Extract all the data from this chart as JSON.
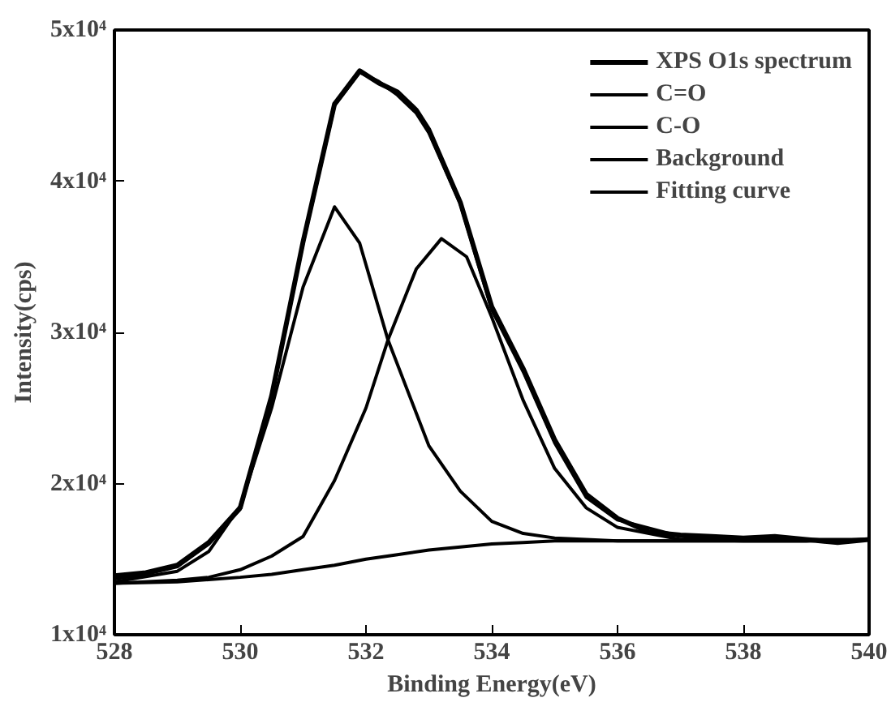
{
  "chart_data": {
    "type": "line",
    "xlabel": "Binding Energy(eV)",
    "ylabel": "Intensity(cps)",
    "xlim": [
      528,
      540
    ],
    "xticks": [
      528,
      530,
      532,
      534,
      536,
      538,
      540
    ],
    "ylim": [
      10000,
      50000
    ],
    "yticks": [
      {
        "value": 10000,
        "label": "1x10⁴"
      },
      {
        "value": 20000,
        "label": "2x10⁴"
      },
      {
        "value": 30000,
        "label": "3x10⁴"
      },
      {
        "value": 40000,
        "label": "4x10⁴"
      },
      {
        "value": 50000,
        "label": "5x10⁴"
      }
    ],
    "grid": false,
    "legend": "top right",
    "marker": "none",
    "line_style": "solid",
    "series": [
      {
        "name": "XPS O1s spectrum",
        "color": "#000000",
        "x": [
          528,
          528.5,
          529,
          529.5,
          530,
          530.5,
          531,
          531.5,
          531.9,
          532.2,
          532.5,
          532.8,
          533,
          533.5,
          534,
          534.5,
          535,
          535.5,
          536,
          536.5,
          537,
          537.5,
          538,
          538.5,
          539,
          539.5,
          540
        ],
        "values": [
          13900,
          14100,
          14600,
          16100,
          18400,
          25800,
          36000,
          45100,
          47300,
          46500,
          45900,
          44700,
          43400,
          38600,
          31700,
          27600,
          22900,
          19300,
          17700,
          16800,
          16600,
          16500,
          16400,
          16500,
          16300,
          16100,
          16300
        ]
      },
      {
        "name": "C=O",
        "color": "#000000",
        "x": [
          528,
          529,
          529.5,
          530,
          530.5,
          531,
          531.5,
          531.9,
          532.35,
          533,
          533.5,
          534,
          534.5,
          535,
          535.5,
          536,
          537,
          538,
          539,
          540
        ],
        "values": [
          13500,
          14200,
          15500,
          18500,
          25000,
          33000,
          38300,
          35900,
          29500,
          22500,
          19500,
          17500,
          16700,
          16400,
          16300,
          16200,
          16200,
          16200,
          16200,
          16300
        ]
      },
      {
        "name": "C-O",
        "color": "#000000",
        "x": [
          528,
          529,
          529.5,
          530,
          530.5,
          531,
          531.5,
          532,
          532.35,
          532.8,
          533.2,
          533.6,
          534,
          534.5,
          535,
          535.5,
          536,
          537,
          538,
          539,
          540
        ],
        "values": [
          13400,
          13600,
          13800,
          14300,
          15200,
          16500,
          20200,
          25000,
          29500,
          34200,
          36200,
          35000,
          31000,
          25500,
          21000,
          18400,
          17100,
          16300,
          16200,
          16200,
          16300
        ]
      },
      {
        "name": "Background",
        "color": "#000000",
        "x": [
          528,
          529,
          530,
          530.5,
          531,
          531.5,
          532,
          532.5,
          533,
          533.5,
          534,
          534.5,
          535,
          536,
          537,
          538,
          539,
          540
        ],
        "values": [
          13400,
          13500,
          13800,
          14000,
          14300,
          14600,
          15000,
          15300,
          15600,
          15800,
          16000,
          16100,
          16200,
          16200,
          16200,
          16200,
          16200,
          16300
        ]
      },
      {
        "name": "Fitting curve",
        "color": "#000000",
        "x": [
          528,
          528.5,
          529,
          529.5,
          530,
          530.5,
          531,
          531.5,
          531.9,
          532.2,
          532.5,
          532.8,
          533,
          533.5,
          534,
          534.5,
          535,
          535.5,
          536,
          537,
          538,
          539,
          540
        ],
        "values": [
          13700,
          14000,
          14500,
          16000,
          18300,
          25700,
          35900,
          45000,
          47200,
          46600,
          45700,
          44500,
          43200,
          38500,
          31500,
          27400,
          22700,
          19100,
          17600,
          16500,
          16300,
          16300,
          16300
        ]
      }
    ]
  }
}
